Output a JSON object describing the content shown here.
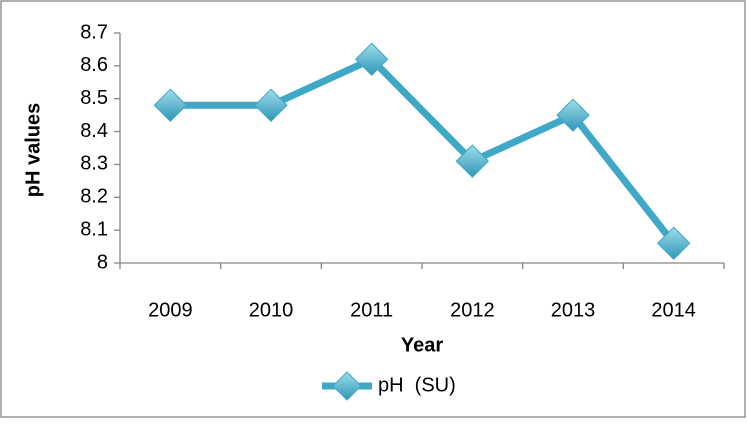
{
  "chart_data": {
    "type": "line",
    "x_label": "Year",
    "y_label": "pH values",
    "categories": [
      "2009",
      "2010",
      "2011",
      "2012",
      "2013",
      "2014"
    ],
    "series": [
      {
        "name": "pH  (SU)",
        "color": "#3ea8c6",
        "values": [
          8.48,
          8.48,
          8.62,
          8.31,
          8.45,
          8.06
        ]
      }
    ],
    "ylim": [
      8,
      8.7
    ],
    "yticks": [
      8,
      8.1,
      8.2,
      8.3,
      8.4,
      8.5,
      8.6,
      8.7
    ],
    "grid": false,
    "legend": "bottom"
  }
}
